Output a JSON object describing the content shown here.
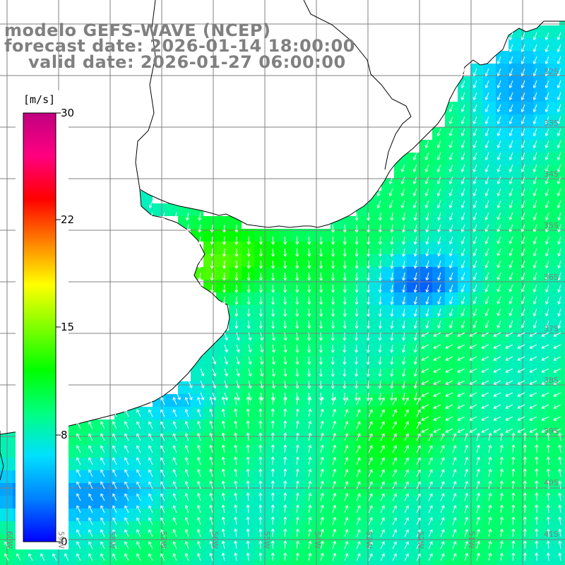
{
  "title": {
    "line1": "modelo GEFS-WAVE (NCEP)",
    "line2": "forecast date: 2026-01-14 18:00:00",
    "line3": "valid date: 2026-01-27 06:00:00"
  },
  "colorbar": {
    "unit": "[m/s]",
    "ticks": [
      {
        "label": "30",
        "value": 30
      },
      {
        "label": "22",
        "value": 22
      },
      {
        "label": "15",
        "value": 15
      },
      {
        "label": "8",
        "value": 8
      },
      {
        "label": "0",
        "value": 0
      }
    ],
    "colors": [
      "#0000ff",
      "#0080ff",
      "#00e0ff",
      "#00ff80",
      "#00ff00",
      "#80ff00",
      "#ffff00",
      "#ff8000",
      "#ff0000",
      "#ff0080",
      "#c00080"
    ]
  },
  "lat_labels": [
    "32S",
    "33S",
    "34S",
    "35S",
    "36S",
    "37S",
    "38S",
    "39S",
    "40S",
    "41S"
  ],
  "lon_labels": [
    "60W",
    "59W",
    "58W",
    "57W",
    "56W",
    "55W",
    "54W",
    "53W",
    "52W",
    "51W"
  ],
  "colors": {
    "land": "#ffffff",
    "grid": "#808080",
    "coast": "#000000",
    "arrow": "#ffffff",
    "title": "#808080"
  }
}
